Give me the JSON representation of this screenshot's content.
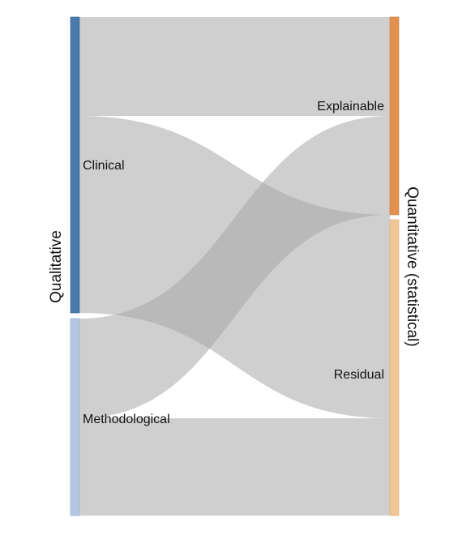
{
  "axes": {
    "left_label": "Qualitative",
    "right_label": "Quantitative (statistical)"
  },
  "nodes": {
    "clinical": {
      "label": "Clinical",
      "color": "#4a7aab"
    },
    "methodological": {
      "label": "Methodological",
      "color": "#b4c6e2"
    },
    "explainable": {
      "label": "Explainable",
      "color": "#e3914e"
    },
    "residual": {
      "label": "Residual",
      "color": "#f0c795"
    }
  },
  "flows": [
    {
      "from": "Clinical",
      "to": "Explainable",
      "share": "clinical-top"
    },
    {
      "from": "Clinical",
      "to": "Residual",
      "share": "clinical-bottom"
    },
    {
      "from": "Methodological",
      "to": "Explainable",
      "share": "methodological-top"
    },
    {
      "from": "Methodological",
      "to": "Residual",
      "share": "methodological-bottom"
    }
  ],
  "colors": {
    "flow": "#a8a8a8",
    "flow_opacity": 0.55
  }
}
